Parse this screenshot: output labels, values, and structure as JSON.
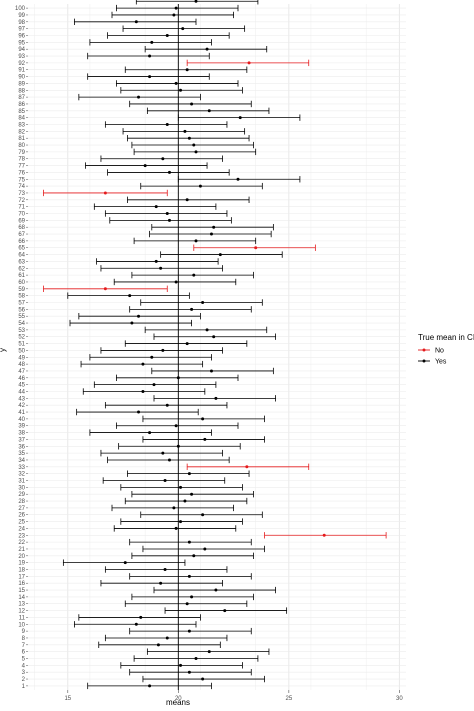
{
  "chart_data": {
    "type": "scatter",
    "title": "",
    "xlabel": "means",
    "ylabel": "y",
    "xlim": [
      13.2,
      30.3
    ],
    "ylim": [
      0.4,
      100.6
    ],
    "x_ticks": [
      15,
      20,
      25,
      30
    ],
    "y_ticks": [
      1,
      2,
      3,
      4,
      5,
      6,
      7,
      8,
      9,
      10,
      11,
      12,
      13,
      14,
      15,
      16,
      17,
      18,
      19,
      20,
      21,
      22,
      23,
      24,
      25,
      26,
      27,
      28,
      29,
      30,
      31,
      32,
      33,
      34,
      35,
      36,
      37,
      38,
      39,
      40,
      41,
      42,
      43,
      44,
      45,
      46,
      47,
      48,
      49,
      50,
      51,
      52,
      53,
      54,
      55,
      56,
      57,
      58,
      59,
      60,
      61,
      62,
      63,
      64,
      65,
      66,
      67,
      68,
      69,
      70,
      71,
      72,
      73,
      74,
      75,
      76,
      77,
      78,
      79,
      80,
      81,
      82,
      83,
      84,
      85,
      86,
      87,
      88,
      89,
      90,
      91,
      92,
      93,
      94,
      95,
      96,
      97,
      98,
      99,
      100
    ],
    "reference_line_x": 20,
    "grid": true,
    "legend": {
      "title": "True mean in CI",
      "position": "right",
      "entries": [
        {
          "label": "No",
          "color": "#e41a1c"
        },
        {
          "label": "Yes",
          "color": "#000000"
        }
      ]
    },
    "series": [
      {
        "name": "No",
        "color": "#e41a1c",
        "points": [
          {
            "y": 23,
            "mean": 26.6,
            "lower": 23.9,
            "upper": 29.4
          },
          {
            "y": 33,
            "mean": 23.1,
            "lower": 20.4,
            "upper": 25.9
          },
          {
            "y": 59,
            "mean": 16.7,
            "lower": 13.9,
            "upper": 19.5
          },
          {
            "y": 65,
            "mean": 23.5,
            "lower": 20.7,
            "upper": 26.2
          },
          {
            "y": 73,
            "mean": 16.7,
            "lower": 13.9,
            "upper": 19.5
          },
          {
            "y": 92,
            "mean": 23.2,
            "lower": 20.4,
            "upper": 25.9
          }
        ]
      },
      {
        "name": "Yes",
        "color": "#000000",
        "points": [
          {
            "y": 1,
            "mean": 18.7,
            "lower": 15.9,
            "upper": 21.5
          },
          {
            "y": 2,
            "mean": 21.1,
            "lower": 18.4,
            "upper": 23.9
          },
          {
            "y": 3,
            "mean": 20.5,
            "lower": 17.8,
            "upper": 23.3
          },
          {
            "y": 4,
            "mean": 20.1,
            "lower": 17.4,
            "upper": 22.9
          },
          {
            "y": 5,
            "mean": 20.8,
            "lower": 18.0,
            "upper": 23.6
          },
          {
            "y": 6,
            "mean": 21.4,
            "lower": 18.6,
            "upper": 24.1
          },
          {
            "y": 7,
            "mean": 19.1,
            "lower": 16.4,
            "upper": 21.9
          },
          {
            "y": 8,
            "mean": 19.5,
            "lower": 16.7,
            "upper": 22.2
          },
          {
            "y": 9,
            "mean": 20.5,
            "lower": 17.8,
            "upper": 23.3
          },
          {
            "y": 10,
            "mean": 18.1,
            "lower": 15.3,
            "upper": 20.8
          },
          {
            "y": 11,
            "mean": 18.3,
            "lower": 15.5,
            "upper": 21.0
          },
          {
            "y": 12,
            "mean": 22.1,
            "lower": 19.4,
            "upper": 24.9
          },
          {
            "y": 13,
            "mean": 20.4,
            "lower": 17.6,
            "upper": 23.1
          },
          {
            "y": 14,
            "mean": 20.6,
            "lower": 17.9,
            "upper": 23.4
          },
          {
            "y": 15,
            "mean": 21.7,
            "lower": 18.9,
            "upper": 24.4
          },
          {
            "y": 16,
            "mean": 19.2,
            "lower": 16.5,
            "upper": 22.0
          },
          {
            "y": 17,
            "mean": 20.5,
            "lower": 17.8,
            "upper": 23.3
          },
          {
            "y": 18,
            "mean": 19.4,
            "lower": 16.7,
            "upper": 22.2
          },
          {
            "y": 19,
            "mean": 17.6,
            "lower": 14.8,
            "upper": 20.3
          },
          {
            "y": 20,
            "mean": 20.7,
            "lower": 17.9,
            "upper": 23.4
          },
          {
            "y": 21,
            "mean": 21.2,
            "lower": 18.4,
            "upper": 23.9
          },
          {
            "y": 22,
            "mean": 20.5,
            "lower": 17.8,
            "upper": 23.3
          },
          {
            "y": 24,
            "mean": 19.9,
            "lower": 17.1,
            "upper": 22.6
          },
          {
            "y": 25,
            "mean": 20.1,
            "lower": 17.4,
            "upper": 22.9
          },
          {
            "y": 26,
            "mean": 21.1,
            "lower": 18.3,
            "upper": 23.8
          },
          {
            "y": 27,
            "mean": 19.8,
            "lower": 17.0,
            "upper": 22.5
          },
          {
            "y": 28,
            "mean": 20.3,
            "lower": 17.6,
            "upper": 23.1
          },
          {
            "y": 29,
            "mean": 20.6,
            "lower": 17.9,
            "upper": 23.4
          },
          {
            "y": 30,
            "mean": 20.1,
            "lower": 17.4,
            "upper": 22.9
          },
          {
            "y": 31,
            "mean": 19.4,
            "lower": 16.6,
            "upper": 22.1
          },
          {
            "y": 32,
            "mean": 20.5,
            "lower": 17.7,
            "upper": 23.2
          },
          {
            "y": 34,
            "mean": 19.6,
            "lower": 16.8,
            "upper": 22.3
          },
          {
            "y": 35,
            "mean": 19.3,
            "lower": 16.5,
            "upper": 22.0
          },
          {
            "y": 36,
            "mean": 20.0,
            "lower": 17.3,
            "upper": 22.8
          },
          {
            "y": 37,
            "mean": 21.2,
            "lower": 18.4,
            "upper": 23.9
          },
          {
            "y": 38,
            "mean": 18.7,
            "lower": 16.0,
            "upper": 21.5
          },
          {
            "y": 39,
            "mean": 19.9,
            "lower": 17.2,
            "upper": 22.7
          },
          {
            "y": 40,
            "mean": 21.1,
            "lower": 18.4,
            "upper": 23.9
          },
          {
            "y": 41,
            "mean": 18.2,
            "lower": 15.4,
            "upper": 20.9
          },
          {
            "y": 42,
            "mean": 19.5,
            "lower": 16.7,
            "upper": 22.2
          },
          {
            "y": 43,
            "mean": 21.7,
            "lower": 18.9,
            "upper": 24.4
          },
          {
            "y": 44,
            "mean": 18.4,
            "lower": 15.7,
            "upper": 21.2
          },
          {
            "y": 45,
            "mean": 18.9,
            "lower": 16.2,
            "upper": 21.7
          },
          {
            "y": 46,
            "mean": 20.0,
            "lower": 17.2,
            "upper": 22.7
          },
          {
            "y": 47,
            "mean": 21.5,
            "lower": 18.8,
            "upper": 24.3
          },
          {
            "y": 48,
            "mean": 18.4,
            "lower": 15.6,
            "upper": 21.1
          },
          {
            "y": 49,
            "mean": 18.8,
            "lower": 16.0,
            "upper": 21.5
          },
          {
            "y": 50,
            "mean": 19.3,
            "lower": 16.5,
            "upper": 22.0
          },
          {
            "y": 51,
            "mean": 20.4,
            "lower": 17.6,
            "upper": 23.1
          },
          {
            "y": 52,
            "mean": 21.6,
            "lower": 18.9,
            "upper": 24.4
          },
          {
            "y": 53,
            "mean": 21.3,
            "lower": 18.5,
            "upper": 24.0
          },
          {
            "y": 54,
            "mean": 17.9,
            "lower": 15.1,
            "upper": 20.6
          },
          {
            "y": 55,
            "mean": 18.2,
            "lower": 15.5,
            "upper": 21.0
          },
          {
            "y": 56,
            "mean": 20.6,
            "lower": 17.8,
            "upper": 23.3
          },
          {
            "y": 57,
            "mean": 21.1,
            "lower": 18.3,
            "upper": 23.8
          },
          {
            "y": 58,
            "mean": 17.8,
            "lower": 15.0,
            "upper": 20.5
          },
          {
            "y": 60,
            "mean": 19.9,
            "lower": 17.1,
            "upper": 22.6
          },
          {
            "y": 61,
            "mean": 20.7,
            "lower": 17.9,
            "upper": 23.4
          },
          {
            "y": 62,
            "mean": 19.2,
            "lower": 16.5,
            "upper": 22.0
          },
          {
            "y": 63,
            "mean": 19.0,
            "lower": 16.3,
            "upper": 21.8
          },
          {
            "y": 64,
            "mean": 21.9,
            "lower": 19.2,
            "upper": 24.7
          },
          {
            "y": 66,
            "mean": 20.8,
            "lower": 18.0,
            "upper": 23.5
          },
          {
            "y": 67,
            "mean": 21.5,
            "lower": 18.7,
            "upper": 24.2
          },
          {
            "y": 68,
            "mean": 21.6,
            "lower": 18.8,
            "upper": 24.3
          },
          {
            "y": 69,
            "mean": 19.6,
            "lower": 16.9,
            "upper": 22.4
          },
          {
            "y": 70,
            "mean": 19.5,
            "lower": 16.7,
            "upper": 22.2
          },
          {
            "y": 71,
            "mean": 19.0,
            "lower": 16.2,
            "upper": 21.7
          },
          {
            "y": 72,
            "mean": 20.4,
            "lower": 17.7,
            "upper": 23.2
          },
          {
            "y": 74,
            "mean": 21.0,
            "lower": 18.3,
            "upper": 23.8
          },
          {
            "y": 75,
            "mean": 22.7,
            "lower": 20.0,
            "upper": 25.5
          },
          {
            "y": 76,
            "mean": 19.6,
            "lower": 16.8,
            "upper": 22.3
          },
          {
            "y": 77,
            "mean": 18.5,
            "lower": 15.8,
            "upper": 21.3
          },
          {
            "y": 78,
            "mean": 19.3,
            "lower": 16.5,
            "upper": 22.0
          },
          {
            "y": 79,
            "mean": 20.8,
            "lower": 18.0,
            "upper": 23.5
          },
          {
            "y": 80,
            "mean": 20.7,
            "lower": 17.9,
            "upper": 23.4
          },
          {
            "y": 81,
            "mean": 20.5,
            "lower": 17.7,
            "upper": 23.2
          },
          {
            "y": 82,
            "mean": 20.3,
            "lower": 17.5,
            "upper": 23.0
          },
          {
            "y": 83,
            "mean": 19.5,
            "lower": 16.7,
            "upper": 22.2
          },
          {
            "y": 84,
            "mean": 22.8,
            "lower": 20.0,
            "upper": 25.5
          },
          {
            "y": 85,
            "mean": 21.4,
            "lower": 18.6,
            "upper": 24.1
          },
          {
            "y": 86,
            "mean": 20.6,
            "lower": 17.8,
            "upper": 23.3
          },
          {
            "y": 87,
            "mean": 18.2,
            "lower": 15.5,
            "upper": 21.0
          },
          {
            "y": 88,
            "mean": 20.1,
            "lower": 17.4,
            "upper": 22.9
          },
          {
            "y": 89,
            "mean": 19.9,
            "lower": 17.2,
            "upper": 22.7
          },
          {
            "y": 90,
            "mean": 18.7,
            "lower": 15.9,
            "upper": 21.4
          },
          {
            "y": 91,
            "mean": 20.4,
            "lower": 17.6,
            "upper": 23.1
          },
          {
            "y": 93,
            "mean": 18.7,
            "lower": 15.9,
            "upper": 21.4
          },
          {
            "y": 94,
            "mean": 21.3,
            "lower": 18.5,
            "upper": 24.0
          },
          {
            "y": 95,
            "mean": 18.8,
            "lower": 16.0,
            "upper": 21.5
          },
          {
            "y": 96,
            "mean": 19.5,
            "lower": 16.8,
            "upper": 22.3
          },
          {
            "y": 97,
            "mean": 20.2,
            "lower": 17.5,
            "upper": 23.0
          },
          {
            "y": 98,
            "mean": 18.1,
            "lower": 15.3,
            "upper": 20.8
          },
          {
            "y": 99,
            "mean": 19.8,
            "lower": 17.0,
            "upper": 22.5
          },
          {
            "y": 100,
            "mean": 19.9,
            "lower": 17.2,
            "upper": 22.7
          },
          {
            "y": 101,
            "mean": 20.8,
            "lower": 18.1,
            "upper": 23.6
          }
        ]
      }
    ]
  }
}
